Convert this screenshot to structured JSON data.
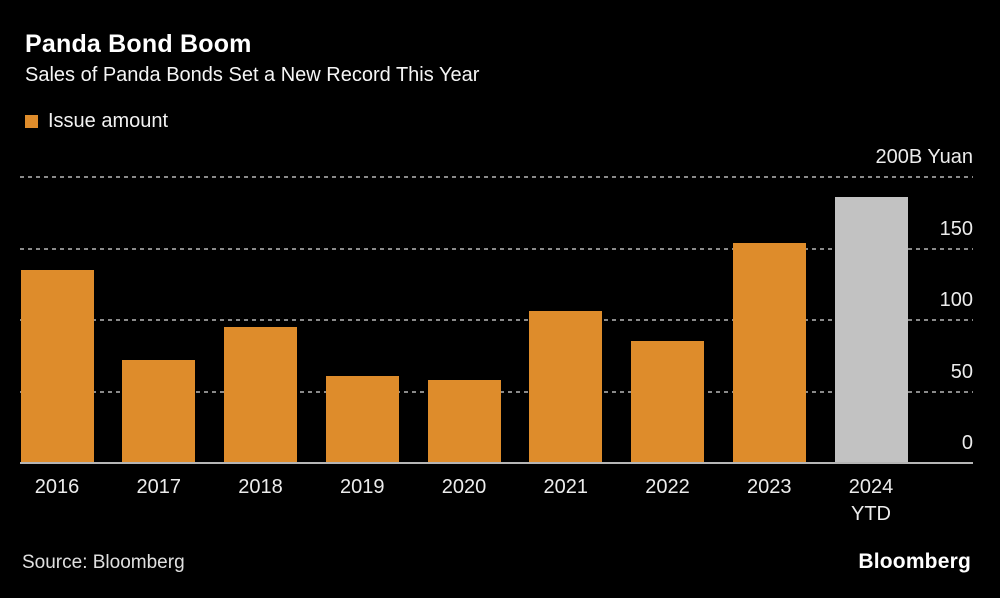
{
  "header": {
    "title": "Panda Bond Boom",
    "subtitle": "Sales of Panda Bonds Set a New Record This Year"
  },
  "legend": {
    "label": "Issue amount"
  },
  "footer": {
    "source": "Source: Bloomberg",
    "brand": "Bloomberg"
  },
  "colors": {
    "background": "#000000",
    "bar": "#de8c2b",
    "bar_highlight": "#c2c2c2",
    "gridline": "#8a8a8a",
    "axis_line": "#b5b5b5",
    "text": "#ffffff"
  },
  "chart_data": {
    "type": "bar",
    "categories": [
      "2016",
      "2017",
      "2018",
      "2019",
      "2020",
      "2021",
      "2022",
      "2023",
      "2024 YTD"
    ],
    "series": [
      {
        "name": "Issue amount",
        "values": [
          135,
          72,
          95,
          61,
          58,
          106,
          85,
          154,
          186
        ]
      }
    ],
    "highlight_index": 8,
    "ylabel": "",
    "xlabel": "",
    "unit_label": "200B Yuan",
    "y_ticks": [
      200,
      150,
      100,
      50,
      0
    ],
    "y_tick_labels": [
      "200B Yuan",
      "150",
      "100",
      "50",
      "0"
    ],
    "ylim": [
      0,
      200
    ],
    "grid": "dotted-horizontal",
    "legend_position": "top-left",
    "tick_label_side": "right"
  }
}
